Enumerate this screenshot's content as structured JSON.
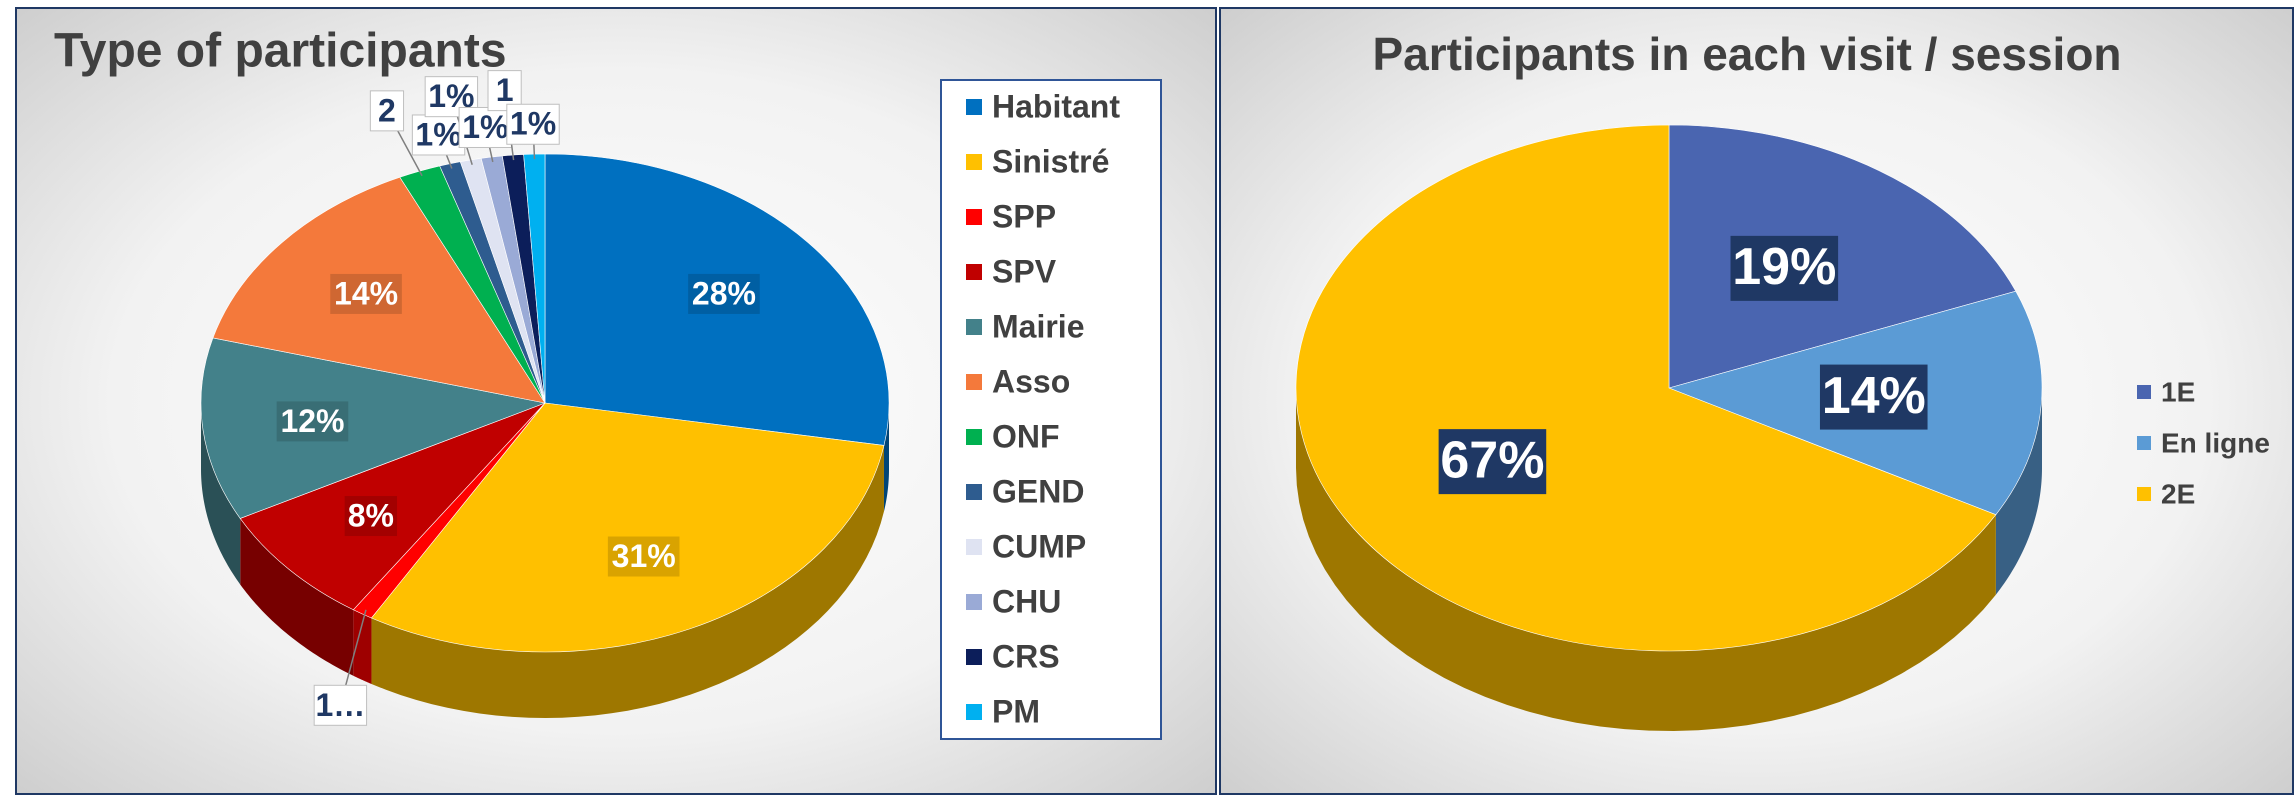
{
  "chart_data": [
    {
      "type": "pie",
      "title": "Type of participants",
      "categories": [
        "Habitant",
        "Sinistré",
        "SPP",
        "SPV",
        "Mairie",
        "Asso",
        "ONF",
        "GEND",
        "CUMP",
        "CHU",
        "CRS",
        "PM"
      ],
      "values": [
        28,
        31,
        1,
        8,
        12,
        14,
        2,
        1,
        1,
        1,
        1,
        1
      ],
      "value_labels": [
        "28%",
        "31%",
        "1…",
        "8%",
        "12%",
        "14%",
        "2",
        "1%",
        "1%",
        "1%",
        "1",
        "1%"
      ],
      "colors": [
        "#0070c0",
        "#ffc000",
        "#ff0000",
        "#c00000",
        "#43818a",
        "#f4793b",
        "#00b050",
        "#2e5c8f",
        "#dfe3f2",
        "#9aaad6",
        "#0c1e5a",
        "#00b0f0"
      ],
      "legend": "right"
    },
    {
      "type": "pie",
      "title": "Participants in each visit / session",
      "categories": [
        "1E",
        "En ligne",
        "2E"
      ],
      "values": [
        19,
        14,
        67
      ],
      "value_labels": [
        "19%",
        "14%",
        "67%"
      ],
      "colors": [
        "#4a65b0",
        "#5b9bd5",
        "#ffc000"
      ],
      "legend": "right"
    }
  ]
}
